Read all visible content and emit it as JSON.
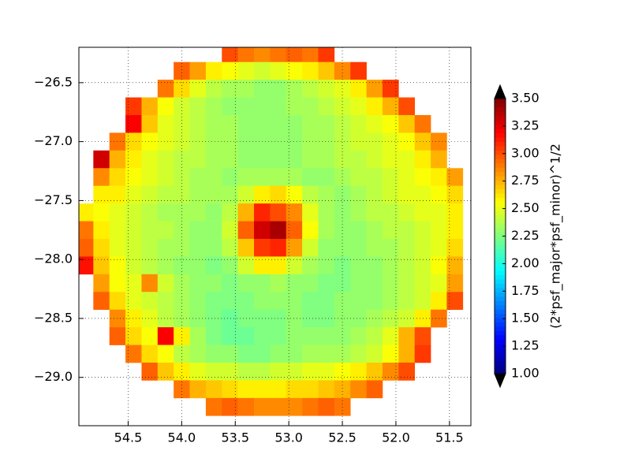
{
  "chart_data": {
    "type": "heatmap",
    "colormap": "jet",
    "grid": true,
    "x_inverted": true,
    "x": [
      54.9,
      54.75,
      54.6,
      54.45,
      54.3,
      54.15,
      54.0,
      53.85,
      53.7,
      53.55,
      53.4,
      53.25,
      53.1,
      52.95,
      52.8,
      52.65,
      52.5,
      52.35,
      52.2,
      52.05,
      51.9,
      51.75,
      51.6,
      51.45,
      51.3
    ],
    "y": [
      -26.25,
      -26.4,
      -26.55,
      -26.7,
      -26.85,
      -27.0,
      -27.15,
      -27.3,
      -27.45,
      -27.6,
      -27.75,
      -27.9,
      -28.05,
      -28.2,
      -28.35,
      -28.5,
      -28.65,
      -28.8,
      -28.95,
      -29.1,
      -29.25
    ],
    "z": [
      [
        null,
        null,
        null,
        null,
        null,
        null,
        null,
        null,
        null,
        3.0,
        2.9,
        2.85,
        2.9,
        2.95,
        2.9,
        3.05,
        null,
        null,
        null,
        null,
        null,
        null,
        null,
        null,
        null
      ],
      [
        null,
        null,
        null,
        null,
        null,
        null,
        2.95,
        2.8,
        2.6,
        2.55,
        2.5,
        2.45,
        2.5,
        2.55,
        2.6,
        2.7,
        2.85,
        3.05,
        null,
        null,
        null,
        null,
        null,
        null,
        null
      ],
      [
        null,
        null,
        null,
        null,
        null,
        2.9,
        2.65,
        2.5,
        2.4,
        2.35,
        2.35,
        2.3,
        2.3,
        2.35,
        2.4,
        2.45,
        2.5,
        2.6,
        2.8,
        3.05,
        null,
        null,
        null,
        null,
        null
      ],
      [
        null,
        null,
        null,
        3.05,
        2.75,
        2.55,
        2.45,
        2.4,
        2.35,
        2.3,
        2.3,
        2.3,
        2.3,
        2.35,
        2.35,
        2.4,
        2.45,
        2.5,
        2.6,
        2.75,
        3.0,
        null,
        null,
        null,
        null
      ],
      [
        null,
        null,
        null,
        3.2,
        2.7,
        2.5,
        2.45,
        2.4,
        2.35,
        2.35,
        2.3,
        2.3,
        2.3,
        2.3,
        2.35,
        2.35,
        2.4,
        2.45,
        2.5,
        2.55,
        2.7,
        2.9,
        null,
        null,
        null
      ],
      [
        null,
        null,
        2.9,
        2.65,
        2.55,
        2.5,
        2.45,
        2.4,
        2.35,
        2.35,
        2.3,
        2.3,
        2.3,
        2.3,
        2.35,
        2.35,
        2.4,
        2.45,
        2.45,
        2.5,
        2.55,
        2.7,
        2.85,
        null,
        null
      ],
      [
        null,
        3.3,
        2.75,
        2.6,
        2.5,
        2.45,
        2.4,
        2.4,
        2.35,
        2.35,
        2.3,
        2.3,
        2.3,
        2.3,
        2.35,
        2.35,
        2.4,
        2.4,
        2.45,
        2.5,
        2.5,
        2.6,
        2.75,
        null,
        null
      ],
      [
        null,
        2.85,
        2.65,
        2.55,
        2.5,
        2.45,
        2.4,
        2.35,
        2.35,
        2.3,
        2.35,
        2.35,
        2.35,
        2.35,
        2.3,
        2.3,
        2.35,
        2.4,
        2.4,
        2.45,
        2.5,
        2.55,
        2.6,
        2.8,
        null
      ],
      [
        null,
        2.6,
        2.6,
        2.5,
        2.45,
        2.4,
        2.4,
        2.35,
        2.35,
        2.35,
        2.45,
        2.6,
        2.65,
        2.55,
        2.4,
        2.35,
        2.3,
        2.35,
        2.4,
        2.45,
        2.5,
        2.5,
        2.55,
        2.65,
        null
      ],
      [
        2.6,
        2.55,
        2.5,
        2.45,
        2.4,
        2.35,
        2.35,
        2.35,
        2.3,
        2.4,
        2.75,
        3.1,
        3.0,
        2.85,
        2.5,
        2.35,
        2.3,
        2.35,
        2.4,
        2.4,
        2.45,
        2.5,
        2.5,
        2.6,
        null
      ],
      [
        2.9,
        2.6,
        2.5,
        2.45,
        2.4,
        2.4,
        2.35,
        2.3,
        2.3,
        2.45,
        2.95,
        3.3,
        3.4,
        2.95,
        2.55,
        2.35,
        2.3,
        2.3,
        2.35,
        2.4,
        2.4,
        2.45,
        2.5,
        2.6,
        null
      ],
      [
        2.95,
        2.65,
        2.5,
        2.45,
        2.4,
        2.35,
        2.35,
        2.3,
        2.3,
        2.4,
        2.7,
        3.05,
        3.1,
        2.8,
        2.45,
        2.3,
        2.3,
        2.3,
        2.35,
        2.35,
        2.4,
        2.45,
        2.5,
        2.65,
        null
      ],
      [
        3.15,
        2.7,
        2.55,
        2.45,
        2.4,
        2.35,
        2.3,
        2.3,
        2.25,
        2.3,
        2.45,
        2.6,
        2.6,
        2.45,
        2.35,
        2.3,
        2.25,
        2.3,
        2.3,
        2.35,
        2.4,
        2.45,
        2.55,
        2.75,
        null
      ],
      [
        null,
        2.8,
        2.55,
        2.5,
        2.85,
        2.45,
        2.35,
        2.3,
        2.3,
        2.25,
        2.3,
        2.3,
        2.35,
        2.3,
        2.3,
        2.25,
        2.25,
        2.3,
        2.3,
        2.35,
        2.4,
        2.45,
        2.5,
        2.8,
        null
      ],
      [
        null,
        2.95,
        2.65,
        2.5,
        2.45,
        2.4,
        2.35,
        2.3,
        2.25,
        2.25,
        2.25,
        2.3,
        2.3,
        2.3,
        2.25,
        2.25,
        2.3,
        2.3,
        2.3,
        2.35,
        2.4,
        2.45,
        2.6,
        3.0,
        null
      ],
      [
        null,
        null,
        2.85,
        2.6,
        2.5,
        2.4,
        2.35,
        2.3,
        2.25,
        2.2,
        2.25,
        2.25,
        2.25,
        2.3,
        2.25,
        2.25,
        2.3,
        2.3,
        2.35,
        2.4,
        2.45,
        2.6,
        2.9,
        null,
        null
      ],
      [
        null,
        null,
        2.95,
        2.65,
        2.55,
        3.2,
        2.6,
        2.35,
        2.25,
        2.2,
        2.2,
        2.25,
        2.25,
        2.3,
        2.3,
        2.3,
        2.3,
        2.35,
        2.4,
        2.5,
        2.75,
        3.0,
        null,
        null,
        null
      ],
      [
        null,
        null,
        null,
        2.9,
        2.65,
        2.55,
        2.4,
        2.35,
        2.3,
        2.3,
        2.25,
        2.25,
        2.3,
        2.3,
        2.35,
        2.35,
        2.35,
        2.4,
        2.45,
        2.55,
        2.75,
        3.05,
        null,
        null,
        null
      ],
      [
        null,
        null,
        null,
        null,
        2.95,
        2.7,
        2.6,
        2.5,
        2.45,
        2.45,
        2.4,
        2.4,
        2.45,
        2.45,
        2.5,
        2.5,
        2.55,
        2.6,
        2.7,
        2.85,
        3.0,
        null,
        null,
        null,
        null
      ],
      [
        null,
        null,
        null,
        null,
        null,
        null,
        2.9,
        2.75,
        2.7,
        2.65,
        2.6,
        2.6,
        2.6,
        2.65,
        2.65,
        2.7,
        2.75,
        2.85,
        2.95,
        null,
        null,
        null,
        null,
        null,
        null
      ],
      [
        null,
        null,
        null,
        null,
        null,
        null,
        null,
        null,
        2.9,
        2.95,
        2.9,
        2.85,
        2.85,
        2.85,
        2.9,
        2.95,
        2.9,
        null,
        null,
        null,
        null,
        null,
        null,
        null,
        null
      ]
    ],
    "xlim": [
      54.96,
      51.3
    ],
    "ylim": [
      -29.41,
      -26.2
    ],
    "xticks": [
      54.5,
      {
        "value": 54,
        "label": "54.0"
      },
      53.5,
      {
        "value": 53,
        "label": "53.0"
      },
      52.5,
      {
        "value": 52,
        "label": "52.0"
      },
      51.5
    ],
    "yticks": [
      {
        "value": -26.5,
        "label": "−26.5"
      },
      {
        "value": -27,
        "label": "−27.0"
      },
      {
        "value": -27.5,
        "label": "−27.5"
      },
      {
        "value": -28,
        "label": "−28.0"
      },
      {
        "value": -28.5,
        "label": "−28.5"
      },
      {
        "value": -29,
        "label": "−29.0"
      }
    ],
    "colorbar": {
      "label": "(2*psf_major*psf_minor)^1/2",
      "clim": [
        1,
        3.5
      ],
      "extend": "both",
      "ticks": [
        {
          "value": 1,
          "label": "1.00"
        },
        {
          "value": 1.25,
          "label": "1.25"
        },
        {
          "value": 1.5,
          "label": "1.50"
        },
        {
          "value": 1.75,
          "label": "1.75"
        },
        {
          "value": 2,
          "label": "2.00"
        },
        {
          "value": 2.25,
          "label": "2.25"
        },
        {
          "value": 2.5,
          "label": "2.50"
        },
        {
          "value": 2.75,
          "label": "2.75"
        },
        {
          "value": 3,
          "label": "3.00"
        },
        {
          "value": 3.25,
          "label": "3.25"
        },
        {
          "value": 3.5,
          "label": "3.50"
        }
      ]
    }
  }
}
